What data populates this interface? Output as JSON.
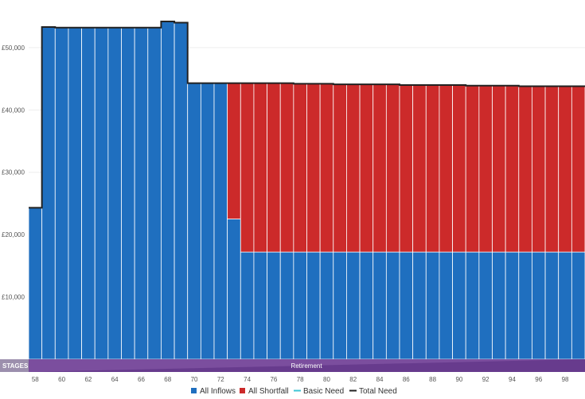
{
  "chart_data": {
    "type": "bar",
    "stacked": true,
    "x_start": 58,
    "x_end": 99,
    "x_tick_labels": [
      "58",
      "60",
      "62",
      "64",
      "66",
      "68",
      "70",
      "72",
      "74",
      "76",
      "78",
      "80",
      "82",
      "84",
      "86",
      "88",
      "90",
      "92",
      "94",
      "96",
      "98"
    ],
    "ylim": [
      0,
      57000
    ],
    "y_tick_labels": [
      "£10,000",
      "£20,000",
      "£30,000",
      "£40,000",
      "£50,000"
    ],
    "y_tick_values": [
      10000,
      20000,
      30000,
      40000,
      50000
    ],
    "series": [
      {
        "name": "All Inflows",
        "color": "#1f6fbf",
        "values": [
          24300,
          53300,
          53200,
          53200,
          53200,
          53200,
          53200,
          53200,
          53200,
          53200,
          54200,
          54000,
          44300,
          44300,
          44300,
          22500,
          17200,
          17200,
          17200,
          17200,
          17200,
          17200,
          17200,
          17200,
          17200,
          17200,
          17200,
          17200,
          17200,
          17200,
          17200,
          17200,
          17200,
          17200,
          17200,
          17200,
          17200,
          17200,
          17200,
          17200,
          17200,
          17200
        ]
      },
      {
        "name": "All Shortfall",
        "color": "#cc2a2a",
        "values": [
          0,
          0,
          0,
          0,
          0,
          0,
          0,
          0,
          0,
          0,
          0,
          0,
          0,
          0,
          0,
          21800,
          27100,
          27100,
          27100,
          27100,
          27000,
          27000,
          27000,
          26900,
          26900,
          26900,
          26900,
          26900,
          26800,
          26800,
          26800,
          26800,
          26800,
          26700,
          26700,
          26700,
          26700,
          26600,
          26600,
          26600,
          26600,
          26600
        ]
      }
    ],
    "lines": [
      {
        "name": "Basic Need",
        "color": "#3cc6d6",
        "values": []
      },
      {
        "name": "Total Need",
        "color": "#222222",
        "values": [
          24300,
          53300,
          53200,
          53200,
          53200,
          53200,
          53200,
          53200,
          53200,
          53200,
          54200,
          54000,
          44300,
          44300,
          44300,
          44300,
          44300,
          44300,
          44300,
          44300,
          44200,
          44200,
          44200,
          44100,
          44100,
          44100,
          44100,
          44100,
          44000,
          44000,
          44000,
          44000,
          44000,
          43900,
          43900,
          43900,
          43900,
          43800,
          43800,
          43800,
          43800,
          43800
        ]
      }
    ],
    "stages_label": "STAGES",
    "stage_name": "Retirement",
    "stage_color": "#7b4e9e"
  }
}
